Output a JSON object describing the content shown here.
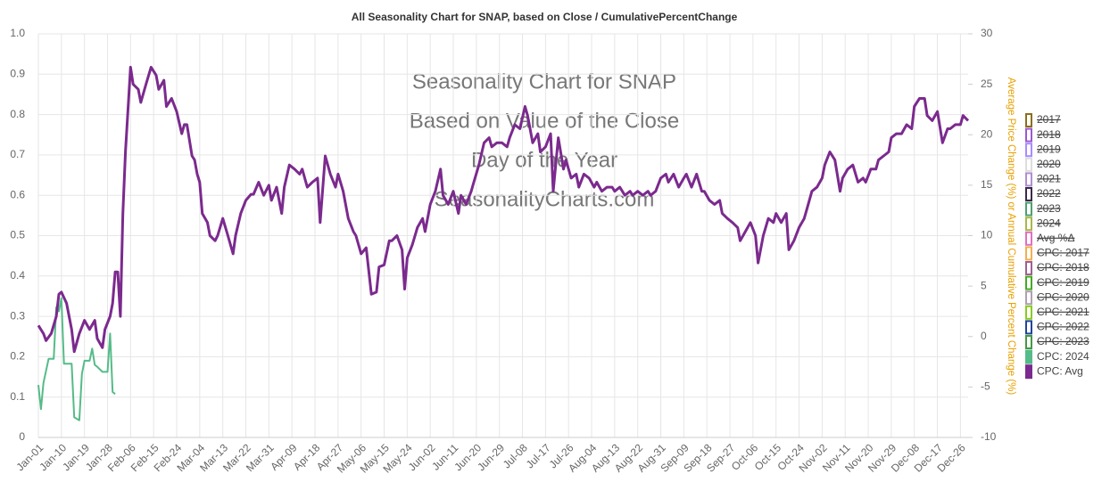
{
  "chart_data": {
    "type": "line",
    "title": "All Seasonality Chart for SNAP, based on Close / CumulativePercentChange",
    "watermark": [
      "Seasonality Chart for SNAP",
      "Based on Value of the Close",
      "Day of the Year",
      "SeasonalityCharts.com"
    ],
    "y2label": "Average Price Change (%) or Annual Cumulative Percent Change (%)",
    "grid": true,
    "legend_position": "right",
    "xlim": [
      0,
      363
    ],
    "xticks": [
      {
        "value": 0,
        "label": "Jan-01"
      },
      {
        "value": 9,
        "label": "Jan-10"
      },
      {
        "value": 18,
        "label": "Jan-19"
      },
      {
        "value": 27,
        "label": "Jan-28"
      },
      {
        "value": 36,
        "label": "Feb-06"
      },
      {
        "value": 45,
        "label": "Feb-15"
      },
      {
        "value": 54,
        "label": "Feb-24"
      },
      {
        "value": 63,
        "label": "Mar-04"
      },
      {
        "value": 72,
        "label": "Mar-13"
      },
      {
        "value": 81,
        "label": "Mar-22"
      },
      {
        "value": 90,
        "label": "Mar-31"
      },
      {
        "value": 99,
        "label": "Apr-09"
      },
      {
        "value": 108,
        "label": "Apr-18"
      },
      {
        "value": 117,
        "label": "Apr-27"
      },
      {
        "value": 126,
        "label": "May-06"
      },
      {
        "value": 135,
        "label": "May-15"
      },
      {
        "value": 144,
        "label": "May-24"
      },
      {
        "value": 153,
        "label": "Jun-02"
      },
      {
        "value": 162,
        "label": "Jun-11"
      },
      {
        "value": 171,
        "label": "Jun-20"
      },
      {
        "value": 180,
        "label": "Jun-29"
      },
      {
        "value": 189,
        "label": "Jul-08"
      },
      {
        "value": 198,
        "label": "Jul-17"
      },
      {
        "value": 207,
        "label": "Jul-26"
      },
      {
        "value": 216,
        "label": "Aug-04"
      },
      {
        "value": 225,
        "label": "Aug-13"
      },
      {
        "value": 234,
        "label": "Aug-22"
      },
      {
        "value": 243,
        "label": "Aug-31"
      },
      {
        "value": 252,
        "label": "Sep-09"
      },
      {
        "value": 261,
        "label": "Sep-18"
      },
      {
        "value": 270,
        "label": "Sep-27"
      },
      {
        "value": 279,
        "label": "Oct-06"
      },
      {
        "value": 288,
        "label": "Oct-15"
      },
      {
        "value": 297,
        "label": "Oct-24"
      },
      {
        "value": 306,
        "label": "Nov-02"
      },
      {
        "value": 315,
        "label": "Nov-11"
      },
      {
        "value": 324,
        "label": "Nov-20"
      },
      {
        "value": 333,
        "label": "Nov-29"
      },
      {
        "value": 342,
        "label": "Dec-08"
      },
      {
        "value": 351,
        "label": "Dec-17"
      },
      {
        "value": 360,
        "label": "Dec-26"
      }
    ],
    "ylim": [
      0,
      1
    ],
    "yticks": [
      0,
      0.1,
      0.2,
      0.3,
      0.4,
      0.5,
      0.6,
      0.7,
      0.8,
      0.9,
      {
        "value": 1,
        "label": "1.0"
      }
    ],
    "y2lim": [
      -10,
      30
    ],
    "y2ticks": [
      -10,
      -5,
      0,
      5,
      10,
      15,
      20,
      25,
      30
    ],
    "series": [
      {
        "name": "2017",
        "color": "#8b6f1e",
        "visible": false
      },
      {
        "name": "2018",
        "color": "#9b59d0",
        "visible": false
      },
      {
        "name": "2019",
        "color": "#a98bff",
        "visible": false
      },
      {
        "name": "2020",
        "color": "#dddddd",
        "visible": false
      },
      {
        "name": "2021",
        "color": "#b08fd0",
        "visible": false
      },
      {
        "name": "2022",
        "color": "#3a2a4a",
        "visible": false
      },
      {
        "name": "2023",
        "color": "#4fa070",
        "visible": false
      },
      {
        "name": "2024",
        "color": "#a8b84a",
        "visible": false
      },
      {
        "name": "Avg %Δ",
        "color": "#e070c0",
        "visible": false
      },
      {
        "name": "CPC: 2017",
        "color": "#f0b050",
        "visible": false
      },
      {
        "name": "CPC: 2018",
        "color": "#a06090",
        "visible": false
      },
      {
        "name": "CPC: 2019",
        "color": "#44aa22",
        "visible": false
      },
      {
        "name": "CPC: 2020",
        "color": "#b0a0b0",
        "visible": false
      },
      {
        "name": "CPC: 2021",
        "color": "#88cc22",
        "visible": false
      },
      {
        "name": "CPC: 2022",
        "color": "#224499",
        "visible": false
      },
      {
        "name": "CPC: 2023",
        "color": "#449944",
        "visible": false
      },
      {
        "name": "CPC: 2024",
        "color": "#55bb88",
        "visible": true,
        "axis": "y2",
        "x": [
          0,
          1,
          2,
          4,
          6,
          7,
          8,
          9,
          10,
          13,
          14,
          16,
          17,
          18,
          20,
          21,
          22,
          23,
          25,
          27,
          28,
          29,
          30
        ],
        "values": [
          -4.8,
          -7.2,
          -4.6,
          -2.2,
          -2.2,
          2.9,
          2.5,
          3.8,
          -2.7,
          -2.7,
          -8.0,
          -8.3,
          -3.7,
          -2.4,
          -2.4,
          -1.2,
          -2.8,
          -3.0,
          -3.5,
          -3.5,
          0.3,
          -5.5,
          -5.7
        ]
      },
      {
        "name": "CPC: Avg",
        "color": "#7b2a8e",
        "visible": true,
        "axis": "y2",
        "x": [
          0,
          2,
          3,
          5,
          7,
          8,
          9,
          11,
          13,
          14,
          16,
          18,
          20,
          22,
          23,
          25,
          26,
          28,
          29,
          30,
          31,
          32,
          33,
          34,
          36,
          37,
          39,
          40,
          42,
          44,
          46,
          47,
          49,
          50,
          52,
          54,
          56,
          57,
          58,
          60,
          61,
          62,
          63,
          64,
          66,
          67,
          69,
          70,
          72,
          74,
          76,
          77,
          79,
          81,
          83,
          84,
          86,
          88,
          90,
          91,
          93,
          95,
          96,
          98,
          100,
          102,
          103,
          105,
          107,
          109,
          110,
          112,
          114,
          116,
          117,
          119,
          121,
          123,
          124,
          126,
          128,
          130,
          132,
          133,
          135,
          137,
          138,
          140,
          142,
          143,
          144,
          146,
          148,
          150,
          151,
          153,
          155,
          157,
          158,
          160,
          162,
          164,
          165,
          167,
          169,
          170,
          172,
          174,
          176,
          177,
          179,
          181,
          183,
          184,
          186,
          188,
          190,
          191,
          193,
          195,
          196,
          198,
          200,
          201,
          203,
          205,
          206,
          208,
          210,
          211,
          213,
          215,
          217,
          218,
          220,
          222,
          224,
          225,
          227,
          229,
          231,
          232,
          234,
          236,
          238,
          239,
          241,
          243,
          245,
          246,
          248,
          250,
          252,
          253,
          255,
          257,
          259,
          260,
          262,
          264,
          266,
          267,
          269,
          271,
          273,
          274,
          276,
          278,
          280,
          281,
          283,
          285,
          287,
          288,
          290,
          292,
          293,
          295,
          297,
          299,
          300,
          302,
          304,
          306,
          307,
          309,
          311,
          313,
          314,
          316,
          318,
          320,
          322,
          323,
          325,
          327,
          328,
          330,
          332,
          333,
          335,
          337,
          339,
          341,
          342,
          344,
          346,
          347,
          349,
          351,
          353,
          355,
          356,
          358,
          360,
          361,
          363
        ],
        "values": [
          1.1,
          0.3,
          -0.4,
          0.3,
          2.0,
          4.2,
          4.4,
          3.3,
          0.7,
          -1.5,
          0.3,
          1.6,
          0.7,
          1.6,
          -0.2,
          -1.1,
          0.7,
          2.0,
          3.3,
          6.4,
          6.4,
          2.0,
          12.2,
          18.3,
          26.7,
          25.0,
          24.5,
          23.2,
          25.0,
          26.7,
          25.9,
          24.5,
          25.4,
          22.8,
          23.6,
          22.3,
          20.1,
          21.0,
          21.0,
          17.9,
          17.5,
          16.1,
          15.3,
          12.2,
          11.3,
          10.0,
          9.5,
          10.0,
          11.7,
          10.0,
          8.2,
          10.0,
          12.2,
          13.5,
          14.1,
          14.1,
          15.3,
          14.0,
          15.0,
          13.5,
          14.8,
          12.2,
          14.8,
          17.0,
          16.6,
          16.1,
          16.6,
          14.8,
          15.3,
          15.7,
          11.3,
          17.9,
          16.1,
          14.8,
          16.1,
          14.4,
          11.7,
          10.4,
          10.0,
          8.2,
          8.8,
          4.2,
          4.4,
          6.9,
          7.1,
          9.5,
          9.5,
          10.0,
          8.6,
          4.7,
          7.8,
          9.1,
          10.8,
          11.7,
          10.4,
          13.1,
          14.4,
          16.6,
          14.0,
          13.1,
          14.4,
          12.2,
          14.0,
          13.1,
          14.4,
          15.3,
          17.0,
          19.2,
          19.7,
          18.8,
          19.2,
          19.2,
          18.8,
          19.7,
          21.0,
          20.6,
          22.8,
          21.9,
          19.2,
          20.1,
          18.3,
          18.8,
          20.1,
          14.4,
          19.7,
          16.6,
          17.5,
          15.7,
          16.1,
          14.8,
          16.1,
          15.7,
          14.8,
          15.3,
          14.4,
          14.8,
          14.8,
          14.4,
          14.8,
          14.0,
          14.4,
          14.0,
          14.4,
          14.0,
          14.4,
          14.0,
          14.4,
          15.7,
          16.1,
          15.3,
          16.1,
          14.8,
          15.7,
          16.1,
          14.8,
          16.1,
          14.4,
          14.4,
          13.5,
          13.1,
          13.5,
          12.2,
          11.7,
          11.3,
          10.8,
          9.5,
          10.4,
          11.3,
          10.0,
          7.3,
          10.0,
          11.7,
          11.3,
          12.2,
          11.3,
          12.2,
          8.6,
          9.5,
          10.8,
          11.7,
          12.6,
          14.4,
          14.8,
          15.7,
          17.0,
          18.3,
          17.5,
          14.4,
          15.7,
          16.6,
          17.0,
          15.3,
          15.7,
          15.3,
          16.6,
          16.6,
          17.5,
          17.9,
          18.3,
          19.7,
          20.1,
          20.1,
          21.0,
          20.6,
          22.8,
          23.6,
          23.6,
          21.9,
          21.4,
          22.3,
          19.2,
          20.6,
          20.6,
          21.0,
          21.0,
          21.9,
          21.4
        ]
      }
    ]
  }
}
